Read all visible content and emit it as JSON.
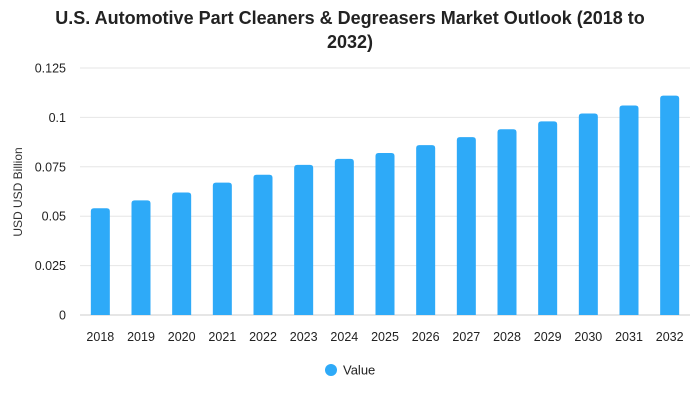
{
  "chart_data": {
    "type": "bar",
    "title_line1": "U.S. Automotive Part Cleaners & Degreasers Market Outlook (2018 to",
    "title_line2": "2032)",
    "ylabel": "USD USD Billion",
    "xlabel": "",
    "categories": [
      "2018",
      "2019",
      "2020",
      "2021",
      "2022",
      "2023",
      "2024",
      "2025",
      "2026",
      "2027",
      "2028",
      "2029",
      "2030",
      "2031",
      "2032"
    ],
    "series": [
      {
        "name": "Value",
        "color": "#2eaaf8",
        "values": [
          0.054,
          0.058,
          0.062,
          0.067,
          0.071,
          0.076,
          0.079,
          0.082,
          0.086,
          0.09,
          0.094,
          0.098,
          0.102,
          0.106,
          0.111
        ]
      }
    ],
    "ylim": [
      0,
      0.125
    ],
    "yticks": [
      "0",
      "0.025",
      "0.05",
      "0.075",
      "0.1",
      "0.125"
    ],
    "ytick_values": [
      0,
      0.025,
      0.05,
      0.075,
      0.1,
      0.125
    ],
    "grid": true,
    "legend_position": "bottom-center"
  }
}
